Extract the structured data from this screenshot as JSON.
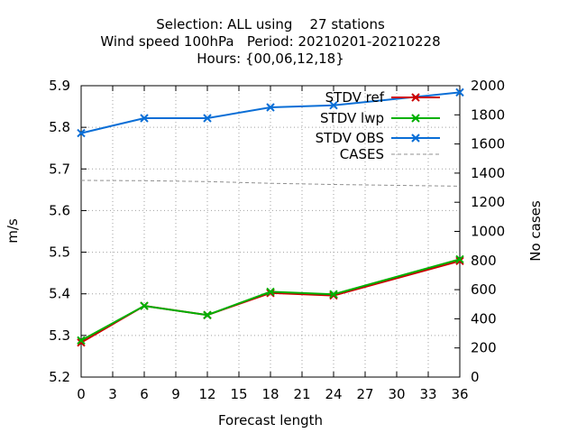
{
  "chart_data": {
    "type": "line",
    "title_lines": [
      "Selection: ALL using    27 stations",
      "Wind speed 100hPa   Period: 20210201-20210228",
      "Hours: {00,06,12,18}"
    ],
    "xlabel": "Forecast length",
    "ylabel": "m/s",
    "y2label": "No cases",
    "xlim": [
      0,
      36
    ],
    "ylim": [
      5.2,
      5.9
    ],
    "y2lim": [
      0,
      2000
    ],
    "xticks": [
      "0",
      "3",
      "6",
      "9",
      "12",
      "15",
      "18",
      "21",
      "24",
      "27",
      "30",
      "33",
      "36"
    ],
    "yticks": [
      "5.2",
      "5.3",
      "5.4",
      "5.5",
      "5.6",
      "5.7",
      "5.8",
      "5.9"
    ],
    "y2ticks": [
      "0",
      "200",
      "400",
      "600",
      "800",
      "1000",
      "1200",
      "1400",
      "1600",
      "1800",
      "2000"
    ],
    "grid": true,
    "legend_position": "top-right",
    "x": [
      0,
      6,
      12,
      18,
      24,
      36
    ],
    "series": [
      {
        "name": "STDV ref",
        "axis": "left",
        "color": "#cc0000",
        "marker": "x",
        "values": [
          5.283,
          5.371,
          5.349,
          5.402,
          5.396,
          5.479
        ]
      },
      {
        "name": "STDV lwp",
        "axis": "left",
        "color": "#00b000",
        "marker": "x",
        "values": [
          5.288,
          5.371,
          5.349,
          5.405,
          5.399,
          5.483
        ]
      },
      {
        "name": "STDV OBS",
        "axis": "left",
        "color": "#0a6ed6",
        "marker": "x",
        "values": [
          5.786,
          5.822,
          5.822,
          5.848,
          5.853,
          5.884
        ]
      },
      {
        "name": "CASES",
        "axis": "right",
        "color": "#909090",
        "dashed": true,
        "values": [
          1350,
          1348,
          1342,
          1330,
          1322,
          1310
        ]
      }
    ]
  }
}
